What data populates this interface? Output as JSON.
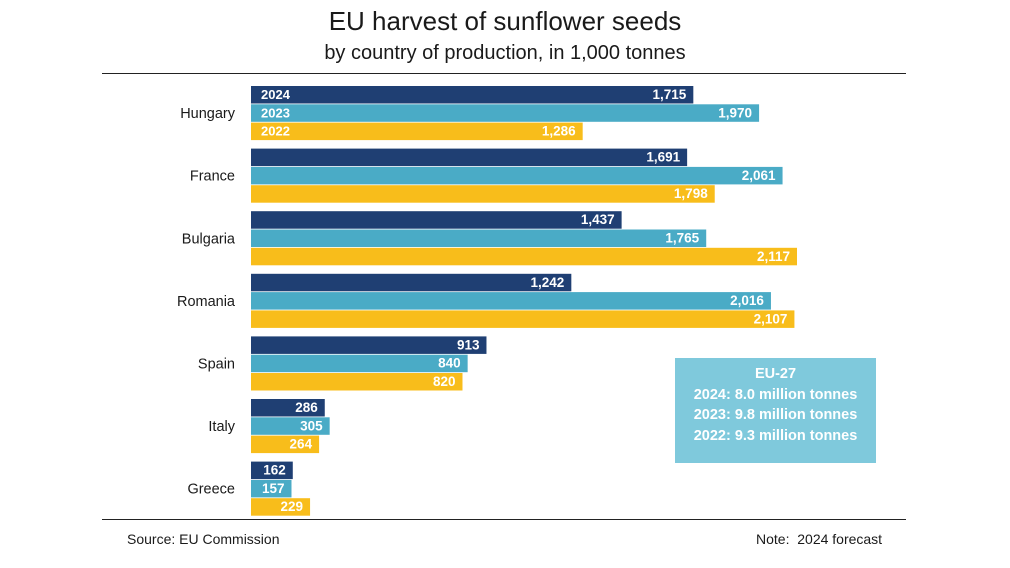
{
  "chart_data": {
    "type": "bar",
    "orientation": "horizontal",
    "title": "EU harvest of sunflower seeds",
    "subtitle": "by country of production, in 1,000 tonnes",
    "categories": [
      "Hungary",
      "France",
      "Bulgaria",
      "Romania",
      "Spain",
      "Italy",
      "Greece"
    ],
    "series": [
      {
        "name": "2024",
        "color": "#1f3f73",
        "values": [
          1715,
          1691,
          1437,
          1242,
          913,
          286,
          162
        ],
        "labels": [
          "1,715",
          "1,691",
          "1,437",
          "1,242",
          "913",
          "286",
          "162"
        ]
      },
      {
        "name": "2023",
        "color": "#4aabc6",
        "values": [
          1970,
          2061,
          1765,
          2016,
          840,
          305,
          157
        ],
        "labels": [
          "1,970",
          "2,061",
          "1,765",
          "2,016",
          "840",
          "305",
          "157"
        ]
      },
      {
        "name": "2022",
        "color": "#f8bd1b",
        "values": [
          1286,
          1798,
          2117,
          2107,
          820,
          264,
          229
        ],
        "labels": [
          "1,286",
          "1,798",
          "2,117",
          "2,107",
          "820",
          "264",
          "229"
        ]
      }
    ],
    "xlim": [
      0,
      2117
    ],
    "grid": false,
    "legend": "inline labels on first group"
  },
  "infobox": {
    "title": "EU-27",
    "lines": [
      "2024: 8.0 million tonnes",
      "2023: 9.8 million tonnes",
      "2022: 9.3 million tonnes"
    ]
  },
  "footer": {
    "source": "Source: EU Commission",
    "note": "Note:  2024 forecast"
  }
}
